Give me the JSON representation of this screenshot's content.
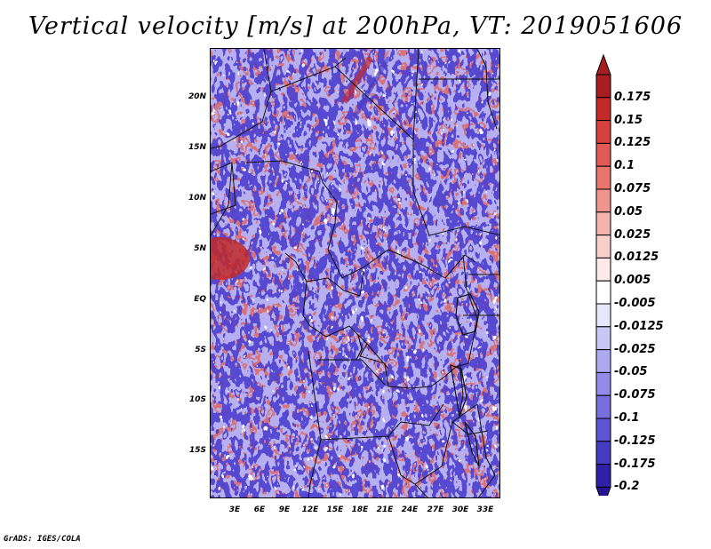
{
  "title": "Vertical velocity [m/s] at 200hPa, VT: 2019051606",
  "credit": "GrADS: IGES/COLA",
  "map": {
    "lat_labels": [
      "20N",
      "15N",
      "10N",
      "5N",
      "EQ",
      "5S",
      "10S",
      "15S"
    ],
    "lon_labels": [
      "3E",
      "6E",
      "9E",
      "12E",
      "15E",
      "18E",
      "21E",
      "24E",
      "27E",
      "30E",
      "33E"
    ]
  },
  "colorbar": {
    "levels": [
      {
        "label": "0.175",
        "color": "#a61d22"
      },
      {
        "label": "0.15",
        "color": "#c42a2a"
      },
      {
        "label": "0.125",
        "color": "#d6403d"
      },
      {
        "label": "0.1",
        "color": "#e05b55"
      },
      {
        "label": "0.075",
        "color": "#e8766f"
      },
      {
        "label": "0.05",
        "color": "#ef958e"
      },
      {
        "label": "0.025",
        "color": "#f5b3ad"
      },
      {
        "label": "0.0125",
        "color": "#f9cfcb"
      },
      {
        "label": "0.005",
        "color": "#fde9e7"
      },
      {
        "label": "-0.005",
        "color": "#ffffff"
      },
      {
        "label": "-0.0125",
        "color": "#e7e6fa"
      },
      {
        "label": "-0.025",
        "color": "#c9c7f4"
      },
      {
        "label": "-0.05",
        "color": "#aeaaef"
      },
      {
        "label": "-0.075",
        "color": "#928ce8"
      },
      {
        "label": "-0.1",
        "color": "#776fde"
      },
      {
        "label": "-0.125",
        "color": "#5e55d2"
      },
      {
        "label": "-0.175",
        "color": "#463cc2"
      },
      {
        "label": "-0.2",
        "color": "#3020a8"
      }
    ],
    "top_color": "#a61d22",
    "bottom_color": "#241490"
  }
}
